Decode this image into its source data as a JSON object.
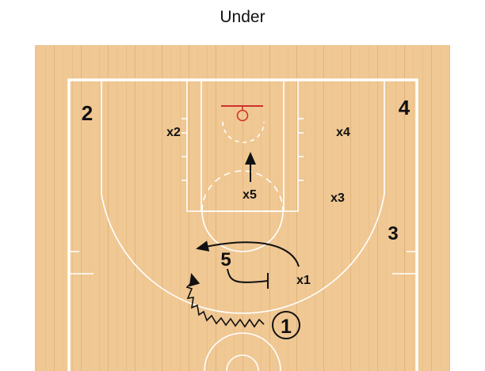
{
  "title": "Under",
  "colors": {
    "court": "#f0c894",
    "court_stripe": "#e3b57d",
    "lines": "#ffffff",
    "rim": "#d0312d",
    "ink": "#111111"
  },
  "offense": [
    {
      "id": "off-2",
      "label": "2"
    },
    {
      "id": "off-4",
      "label": "4"
    },
    {
      "id": "off-3",
      "label": "3"
    },
    {
      "id": "off-5",
      "label": "5"
    },
    {
      "id": "off-1",
      "label": "1"
    }
  ],
  "defense": [
    {
      "id": "def-x2",
      "label": "x2"
    },
    {
      "id": "def-x4",
      "label": "x4"
    },
    {
      "id": "def-x5",
      "label": "x5"
    },
    {
      "id": "def-x3",
      "label": "x3"
    },
    {
      "id": "def-x1",
      "label": "x1"
    }
  ]
}
